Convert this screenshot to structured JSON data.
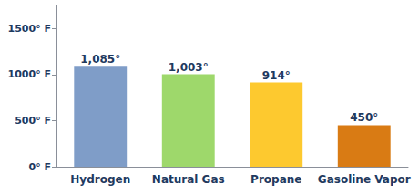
{
  "chart_data": {
    "type": "bar",
    "categories": [
      "Hydrogen",
      "Natural Gas",
      "Propane",
      "Gasoline Vapor"
    ],
    "values": [
      1085,
      1003,
      914,
      450
    ],
    "value_labels": [
      "1,085°",
      "1,003°",
      "914°",
      "450°"
    ],
    "data_labels": true,
    "colors": [
      "#7f9dc8",
      "#9ed86b",
      "#fdc92f",
      "#d97b14"
    ],
    "ylim": [
      0,
      1750
    ],
    "yticks": [
      {
        "value": 0,
        "label": "0° F"
      },
      {
        "value": 500,
        "label": "500° F"
      },
      {
        "value": 1000,
        "label": "1000° F"
      },
      {
        "value": 1500,
        "label": "1500° F"
      }
    ],
    "grid": false
  }
}
